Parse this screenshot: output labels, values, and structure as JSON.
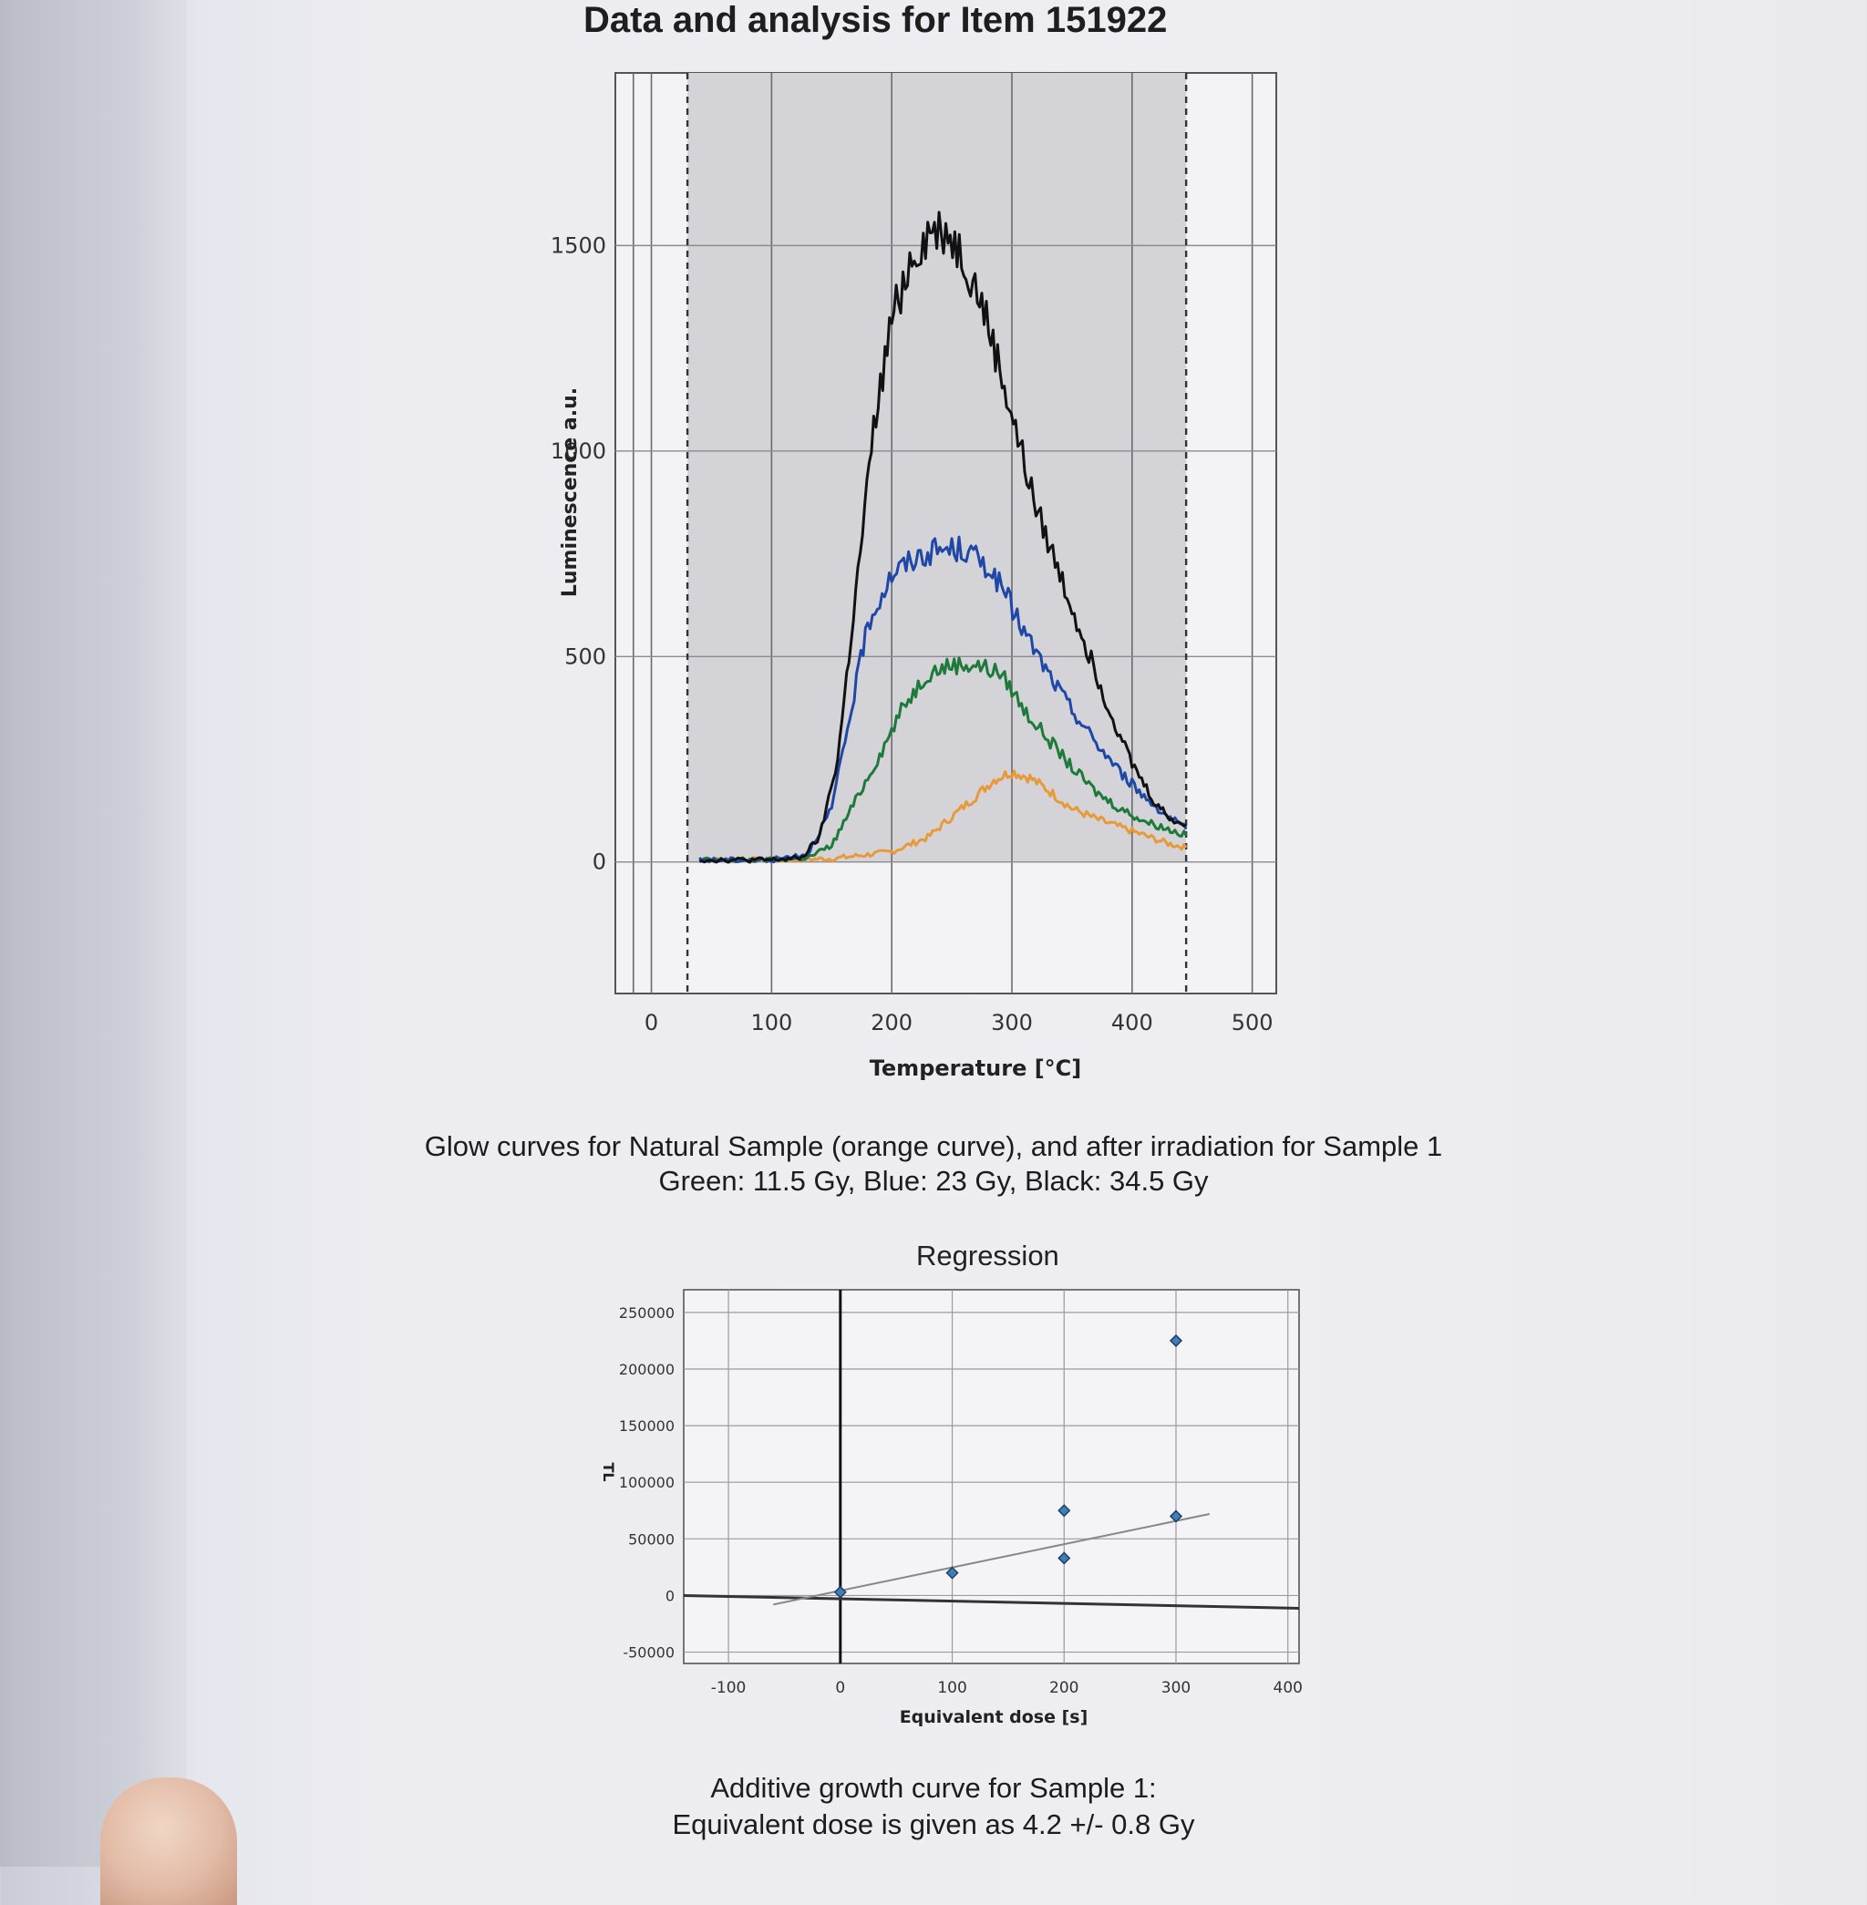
{
  "page": {
    "title": "Data and analysis for Item 151922",
    "caption_glow_line1": "Glow curves for Natural Sample (orange curve), and after irradiation for Sample 1",
    "caption_glow_line2": "Green: 11.5 Gy, Blue: 23 Gy, Black: 34.5 Gy",
    "regression_title": "Regression",
    "caption_growth_line1": "Additive growth curve for Sample 1:",
    "caption_growth_line2": "Equivalent dose is given as 4.2 +/- 0.8 Gy"
  },
  "chart_data": [
    {
      "type": "line",
      "xlabel": "Temperature [°C]",
      "ylabel": "Luminescence a.u.",
      "xlim": [
        -30,
        520
      ],
      "ylim": [
        -320,
        1920
      ],
      "xticks": [
        0,
        100,
        200,
        300,
        400,
        500
      ],
      "yticks": [
        0,
        500,
        1000,
        1500
      ],
      "shaded_range": [
        30,
        445
      ],
      "dashed_x": [
        30,
        445
      ],
      "grid": true,
      "series": [
        {
          "color": "#e89a3a",
          "peak_x": 295,
          "peak_y": 220,
          "points": [
            [
              40,
              5
            ],
            [
              100,
              5
            ],
            [
              150,
              8
            ],
            [
              200,
              25
            ],
            [
              230,
              60
            ],
            [
              250,
              110
            ],
            [
              270,
              160
            ],
            [
              285,
              200
            ],
            [
              300,
              220
            ],
            [
              315,
              205
            ],
            [
              330,
              175
            ],
            [
              350,
              130
            ],
            [
              370,
              105
            ],
            [
              390,
              85
            ],
            [
              410,
              65
            ],
            [
              430,
              45
            ],
            [
              445,
              35
            ]
          ]
        },
        {
          "color": "#1e7a3a",
          "peak_x": 262,
          "peak_y": 490,
          "points": [
            [
              40,
              5
            ],
            [
              100,
              5
            ],
            [
              130,
              10
            ],
            [
              150,
              40
            ],
            [
              170,
              150
            ],
            [
              190,
              260
            ],
            [
              210,
              380
            ],
            [
              230,
              460
            ],
            [
              250,
              480
            ],
            [
              270,
              480
            ],
            [
              290,
              460
            ],
            [
              300,
              420
            ],
            [
              310,
              370
            ],
            [
              330,
              300
            ],
            [
              350,
              230
            ],
            [
              370,
              170
            ],
            [
              390,
              130
            ],
            [
              410,
              100
            ],
            [
              430,
              80
            ],
            [
              445,
              65
            ]
          ]
        },
        {
          "color": "#1f47a8",
          "peak_x": 250,
          "peak_y": 760,
          "points": [
            [
              40,
              5
            ],
            [
              100,
              5
            ],
            [
              130,
              20
            ],
            [
              150,
              130
            ],
            [
              165,
              350
            ],
            [
              180,
              580
            ],
            [
              200,
              700
            ],
            [
              220,
              740
            ],
            [
              240,
              760
            ],
            [
              260,
              760
            ],
            [
              280,
              720
            ],
            [
              295,
              650
            ],
            [
              310,
              560
            ],
            [
              330,
              460
            ],
            [
              350,
              370
            ],
            [
              370,
              290
            ],
            [
              390,
              220
            ],
            [
              410,
              160
            ],
            [
              430,
              110
            ],
            [
              445,
              80
            ]
          ]
        },
        {
          "color": "#111111",
          "peak_x": 238,
          "peak_y": 1560,
          "points": [
            [
              40,
              5
            ],
            [
              100,
              5
            ],
            [
              125,
              10
            ],
            [
              140,
              60
            ],
            [
              155,
              250
            ],
            [
              170,
              650
            ],
            [
              185,
              1050
            ],
            [
              200,
              1320
            ],
            [
              215,
              1460
            ],
            [
              230,
              1530
            ],
            [
              245,
              1540
            ],
            [
              260,
              1470
            ],
            [
              275,
              1360
            ],
            [
              290,
              1200
            ],
            [
              305,
              1030
            ],
            [
              320,
              860
            ],
            [
              340,
              700
            ],
            [
              360,
              540
            ],
            [
              380,
              380
            ],
            [
              400,
              240
            ],
            [
              420,
              140
            ],
            [
              435,
              100
            ],
            [
              445,
              90
            ]
          ]
        }
      ]
    },
    {
      "type": "scatter",
      "title": "Regression",
      "xlabel": "Equivalent dose [s]",
      "ylabel": "TL",
      "xlim": [
        -140,
        410
      ],
      "ylim": [
        -60000,
        270000
      ],
      "xticks": [
        -100,
        0,
        100,
        200,
        300,
        400
      ],
      "yticks": [
        -50000,
        0,
        50000,
        100000,
        150000,
        200000,
        250000
      ],
      "points": [
        [
          0,
          3000
        ],
        [
          100,
          20000
        ],
        [
          200,
          33000
        ],
        [
          200,
          75000
        ],
        [
          300,
          70000
        ],
        [
          300,
          225000
        ]
      ],
      "fit_line": {
        "x": [
          -60,
          330
        ],
        "y": [
          -8000,
          72000
        ]
      },
      "grid": true
    }
  ]
}
